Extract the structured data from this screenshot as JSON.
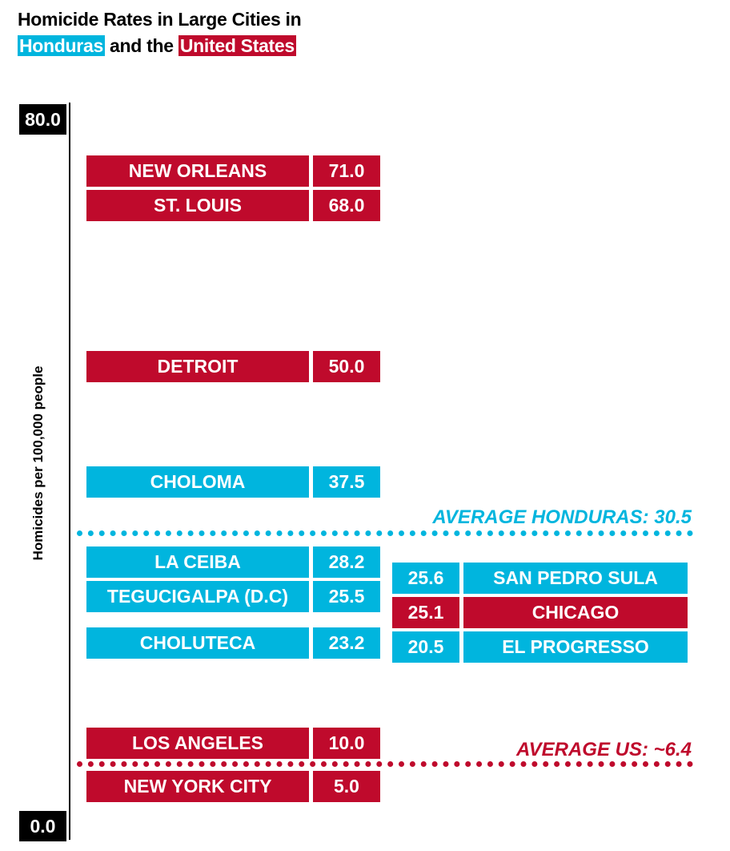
{
  "title": {
    "line1": "Homicide Rates in Large Cities in",
    "honduras": "Honduras",
    "connector": " and the ",
    "united_states": "United States"
  },
  "colors": {
    "honduras": "#00b5de",
    "united_states": "#bf0a2c"
  },
  "chart_data": {
    "type": "table",
    "ylabel": "Homicides per 100,000 people",
    "ylim": [
      0,
      80
    ],
    "axis_tick_labels": [
      "80.0",
      "0.0"
    ],
    "legend": [
      "Honduras",
      "United States"
    ],
    "left_column": [
      {
        "city": "NEW ORLEANS",
        "rate": "71.0",
        "country": "us"
      },
      {
        "city": "ST. LOUIS",
        "rate": "68.0",
        "country": "us"
      },
      {
        "city": "DETROIT",
        "rate": "50.0",
        "country": "us"
      },
      {
        "city": "CHOLOMA",
        "rate": "37.5",
        "country": "hn"
      },
      {
        "city": "LA CEIBA",
        "rate": "28.2",
        "country": "hn"
      },
      {
        "city": "TEGUCIGALPA (D.C)",
        "rate": "25.5",
        "country": "hn"
      },
      {
        "city": "CHOLUTECA",
        "rate": "23.2",
        "country": "hn"
      },
      {
        "city": "LOS ANGELES",
        "rate": "10.0",
        "country": "us"
      },
      {
        "city": "NEW YORK CITY",
        "rate": "5.0",
        "country": "us"
      }
    ],
    "right_column": [
      {
        "city": "SAN PEDRO SULA",
        "rate": "25.6",
        "country": "hn"
      },
      {
        "city": "CHICAGO",
        "rate": "25.1",
        "country": "us"
      },
      {
        "city": "EL PROGRESSO",
        "rate": "20.5",
        "country": "hn"
      }
    ],
    "averages": [
      {
        "label": "AVERAGE HONDURAS: 30.5",
        "value": 30.5,
        "country": "hn"
      },
      {
        "label": "AVERAGE US: ~6.4",
        "value": 6.4,
        "country": "us"
      }
    ]
  }
}
